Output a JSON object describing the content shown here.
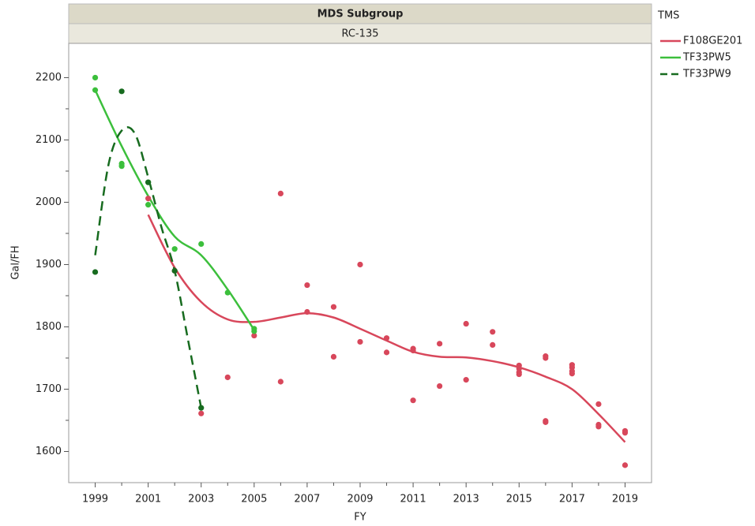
{
  "chart_data": {
    "type": "scatter",
    "header": "MDS Subgroup",
    "subheader": "RC-135",
    "x_label": "FY",
    "y_label": "Gal/FH",
    "legend_title": "TMS",
    "legend_position": "right",
    "xlim": [
      1998,
      2020
    ],
    "ylim": [
      1550,
      2255
    ],
    "xticks": [
      1999,
      2001,
      2003,
      2005,
      2007,
      2009,
      2011,
      2013,
      2015,
      2017,
      2019
    ],
    "xticks_minor": [
      2000,
      2002,
      2004,
      2006,
      2008,
      2010,
      2012,
      2014,
      2016,
      2018
    ],
    "yticks": [
      1600,
      1700,
      1800,
      1900,
      2000,
      2100,
      2200
    ],
    "yticks_minor": [
      1650,
      1750,
      1850,
      1950,
      2050,
      2150
    ],
    "series": [
      {
        "name": "F108GE201",
        "color": "#d8475b",
        "dashed": false,
        "x": [
          2001,
          2002,
          2003,
          2004,
          2005,
          2006,
          2006,
          2007,
          2007,
          2008,
          2008,
          2009,
          2009,
          2010,
          2010,
          2011,
          2011,
          2011,
          2012,
          2012,
          2013,
          2013,
          2014,
          2014,
          2015,
          2015,
          2015,
          2015,
          2016,
          2016,
          2016,
          2016,
          2017,
          2017,
          2017,
          2017,
          2018,
          2018,
          2018,
          2019,
          2019,
          2019
        ],
        "values": [
          2006,
          1890,
          1661,
          1719,
          1786,
          2014,
          1712,
          1867,
          1824,
          1832,
          1752,
          1900,
          1776,
          1782,
          1759,
          1765,
          1762,
          1682,
          1773,
          1705,
          1805,
          1715,
          1792,
          1771,
          1738,
          1733,
          1727,
          1724,
          1753,
          1750,
          1649,
          1647,
          1739,
          1735,
          1729,
          1725,
          1676,
          1643,
          1640,
          1633,
          1630,
          1578
        ],
        "fit_x": [
          2001,
          2002,
          2003,
          2004,
          2005,
          2006,
          2007,
          2008,
          2009,
          2010,
          2011,
          2012,
          2013,
          2014,
          2015,
          2016,
          2017,
          2018,
          2019
        ],
        "fit_values": [
          1980,
          1895,
          1840,
          1812,
          1808,
          1815,
          1822,
          1815,
          1797,
          1778,
          1760,
          1752,
          1751,
          1745,
          1735,
          1720,
          1700,
          1660,
          1615
        ]
      },
      {
        "name": "TF33PW5",
        "color": "#3cbf3c",
        "dashed": false,
        "x": [
          1999,
          1999,
          2000,
          2000,
          2001,
          2001,
          2002,
          2003,
          2004,
          2005,
          2005
        ],
        "values": [
          2200,
          2180,
          2062,
          2058,
          2032,
          1996,
          1925,
          1933,
          1855,
          1797,
          1793
        ],
        "fit_x": [
          1999,
          2000,
          2001,
          2002,
          2003,
          2004,
          2005
        ],
        "fit_values": [
          2180,
          2090,
          2010,
          1945,
          1915,
          1860,
          1795
        ]
      },
      {
        "name": "TF33PW9",
        "color": "#176b1f",
        "dashed": true,
        "x": [
          1999,
          2000,
          2001,
          2002,
          2003
        ],
        "values": [
          1888,
          2178,
          2032,
          1890,
          1670
        ],
        "fit_x": [
          1999,
          1999.5,
          2000,
          2000.5,
          2001,
          2001.5,
          2002,
          2002.5,
          2003
        ],
        "fit_values": [
          1915,
          2060,
          2115,
          2110,
          2040,
          1960,
          1890,
          1780,
          1670
        ]
      }
    ]
  }
}
